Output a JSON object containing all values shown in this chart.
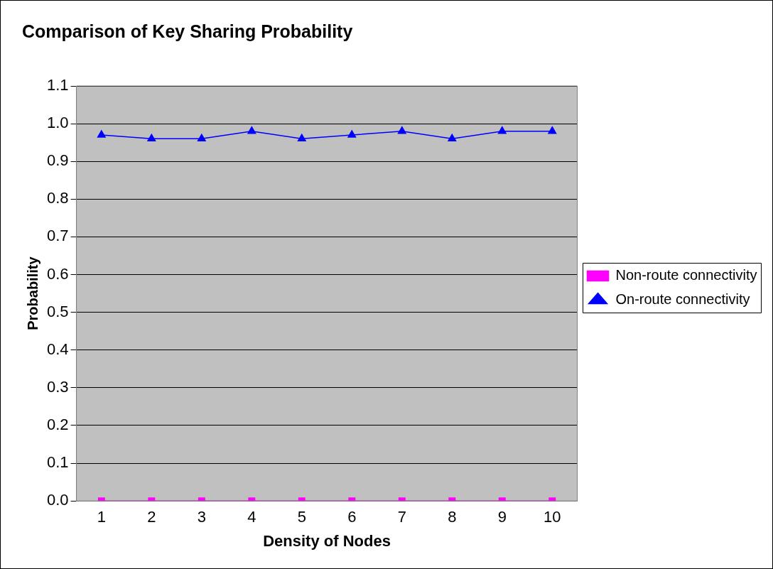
{
  "chart_data": {
    "type": "line",
    "title": "Comparison of Key Sharing Probability",
    "xlabel": "Density of Nodes",
    "ylabel": "Probability",
    "categories": [
      "1",
      "2",
      "3",
      "4",
      "5",
      "6",
      "7",
      "8",
      "9",
      "10"
    ],
    "series": [
      {
        "name": "Non-route connectivity",
        "color": "#ff00ff",
        "marker": "square",
        "values": [
          0,
          0,
          0,
          0,
          0,
          0,
          0,
          0,
          0,
          0
        ]
      },
      {
        "name": "On-route connectivity",
        "color": "#0000ff",
        "marker": "triangle",
        "values": [
          0.97,
          0.96,
          0.96,
          0.98,
          0.96,
          0.97,
          0.98,
          0.96,
          0.98,
          0.98
        ]
      }
    ],
    "ylim": [
      0,
      1.1
    ],
    "yticks": [
      {
        "value": 0,
        "label": "0.0"
      },
      0.1,
      0.2,
      0.3,
      0.4,
      0.5,
      0.6,
      0.7,
      0.8,
      0.9,
      {
        "value": 1,
        "label": "1.0"
      },
      1.1
    ],
    "grid": "y",
    "legend": "right",
    "line_style": "solid"
  }
}
